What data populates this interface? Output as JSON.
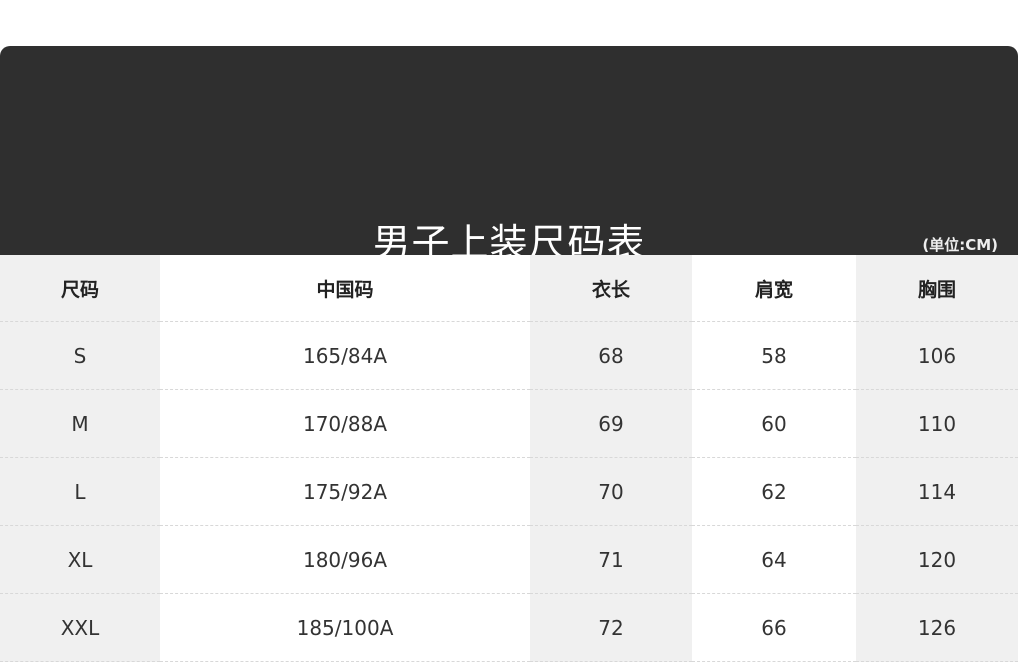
{
  "title": "男子上装尺码表",
  "unit": "(单位:CM)",
  "headers": [
    "尺码",
    "中国码",
    "衣长",
    "肩宽",
    "胸围"
  ],
  "rows": [
    [
      "S",
      "165/84A",
      "68",
      "58",
      "106"
    ],
    [
      "M",
      "170/88A",
      "69",
      "60",
      "110"
    ],
    [
      "L",
      "175/92A",
      "70",
      "62",
      "114"
    ],
    [
      "XL",
      "180/96A",
      "71",
      "64",
      "120"
    ],
    [
      "XXL",
      "185/100A",
      "72",
      "66",
      "126"
    ]
  ]
}
